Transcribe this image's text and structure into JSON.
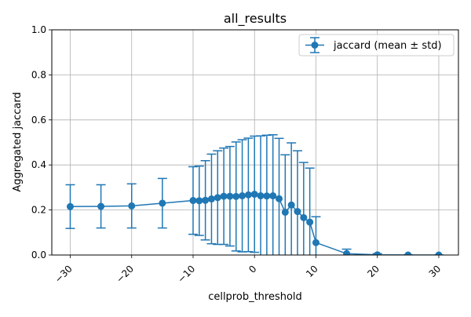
{
  "chart_data": {
    "type": "line",
    "title": "all_results",
    "xlabel": "cellprob_threshold",
    "ylabel": "Aggregated jaccard",
    "xlim": [
      -33,
      33.2
    ],
    "ylim": [
      0.0,
      1.0
    ],
    "x_ticks": [
      -30,
      -20,
      -10,
      0,
      10,
      20,
      30
    ],
    "x_tick_labels": [
      "−30",
      "−20",
      "−10",
      "0",
      "10",
      "20",
      "30"
    ],
    "y_ticks": [
      0.0,
      0.2,
      0.4,
      0.6,
      0.8,
      1.0
    ],
    "y_tick_labels": [
      "0.0",
      "0.2",
      "0.4",
      "0.6",
      "0.8",
      "1.0"
    ],
    "grid": true,
    "legend_position": "top-right",
    "color": "#1f77b4",
    "series": [
      {
        "name": "jaccard (mean ± std)",
        "x": [
          -30,
          -25,
          -20,
          -15,
          -10,
          -9,
          -8,
          -7,
          -6,
          -5,
          -4,
          -3,
          -2,
          -1,
          0,
          1,
          2,
          3,
          4,
          5,
          6,
          7,
          8,
          9,
          10,
          15,
          20,
          25,
          30
        ],
        "mean": [
          0.215,
          0.216,
          0.218,
          0.23,
          0.242,
          0.241,
          0.243,
          0.249,
          0.255,
          0.261,
          0.261,
          0.26,
          0.263,
          0.267,
          0.27,
          0.263,
          0.262,
          0.263,
          0.25,
          0.19,
          0.222,
          0.193,
          0.166,
          0.146,
          0.055,
          0.006,
          0.001,
          0.0,
          0.0
        ],
        "std": [
          0.097,
          0.096,
          0.098,
          0.11,
          0.15,
          0.154,
          0.176,
          0.199,
          0.208,
          0.214,
          0.221,
          0.242,
          0.249,
          0.252,
          0.258,
          0.266,
          0.27,
          0.271,
          0.268,
          0.255,
          0.276,
          0.27,
          0.245,
          0.24,
          0.115,
          0.02,
          0.005,
          0.001,
          0.0
        ]
      }
    ]
  }
}
